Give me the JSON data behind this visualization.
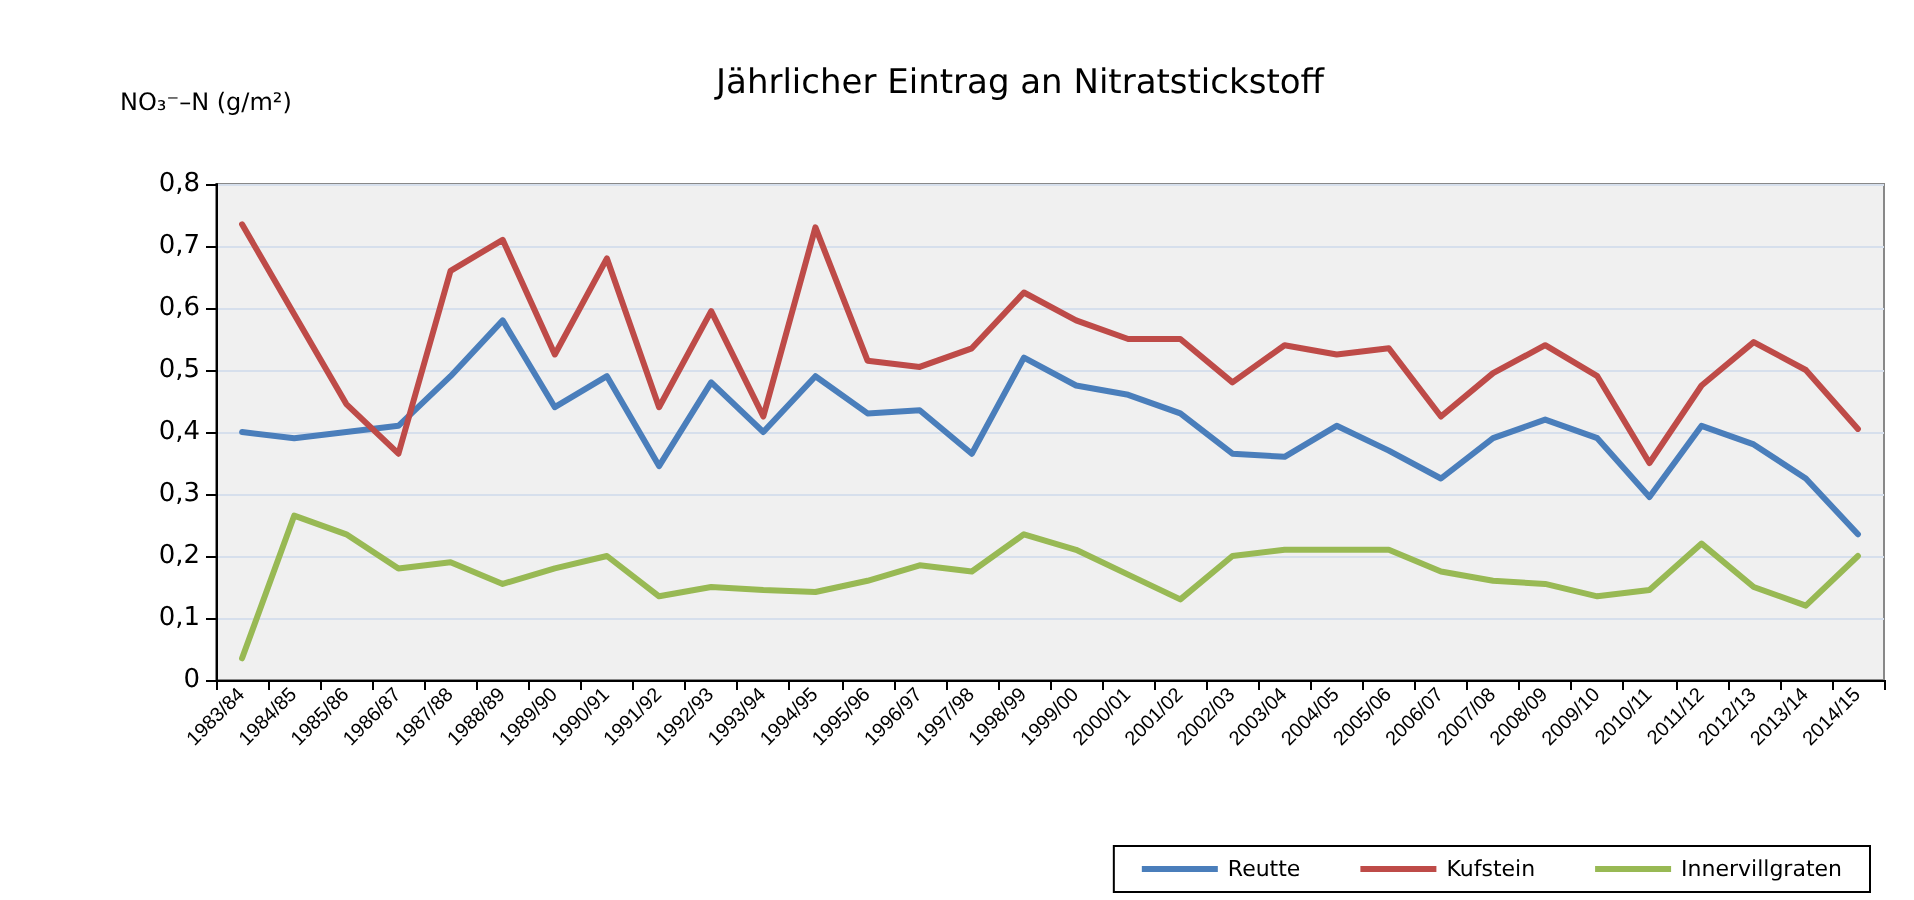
{
  "chart_data": {
    "type": "line",
    "title": "Jährlicher Eintrag an Nitratstickstoff",
    "ylabel": "NO₃⁻–N (g/m²)",
    "categories": [
      "1983/84",
      "1984/85",
      "1985/86",
      "1986/87",
      "1987/88",
      "1988/89",
      "1989/90",
      "1990/91",
      "1991/92",
      "1992/93",
      "1993/94",
      "1994/95",
      "1995/96",
      "1996/97",
      "1997/98",
      "1998/99",
      "1999/00",
      "2000/01",
      "2001/02",
      "2002/03",
      "2003/04",
      "2004/05",
      "2005/06",
      "2006/07",
      "2007/08",
      "2008/09",
      "2009/10",
      "2010/11",
      "2011/12",
      "2012/13",
      "2013/14",
      "2014/15"
    ],
    "series": [
      {
        "name": "Reutte",
        "color": "#4a7ebb",
        "values": [
          0.4,
          0.39,
          0.4,
          0.41,
          0.49,
          0.58,
          0.44,
          0.49,
          0.345,
          0.48,
          0.4,
          0.49,
          0.43,
          0.435,
          0.365,
          0.52,
          0.475,
          0.46,
          0.43,
          0.365,
          0.36,
          0.41,
          0.37,
          0.325,
          0.39,
          0.42,
          0.39,
          0.295,
          0.41,
          0.38,
          0.325,
          0.235
        ]
      },
      {
        "name": "Kufstein",
        "color": "#be4b48",
        "values": [
          0.735,
          0.59,
          0.445,
          0.365,
          0.66,
          0.71,
          0.525,
          0.68,
          0.44,
          0.595,
          0.425,
          0.73,
          0.515,
          0.505,
          0.535,
          0.625,
          0.58,
          0.55,
          0.55,
          0.48,
          0.54,
          0.525,
          0.535,
          0.425,
          0.495,
          0.54,
          0.49,
          0.35,
          0.475,
          0.545,
          0.5,
          0.405
        ]
      },
      {
        "name": "Innervillgraten",
        "color": "#98b954",
        "values": [
          0.035,
          0.265,
          0.235,
          0.18,
          0.19,
          0.155,
          0.18,
          0.2,
          0.135,
          0.15,
          0.145,
          0.142,
          0.16,
          0.185,
          0.175,
          0.235,
          0.21,
          0.17,
          0.13,
          0.2,
          0.21,
          0.21,
          0.21,
          0.175,
          0.16,
          0.155,
          0.135,
          0.145,
          0.22,
          0.15,
          0.12,
          0.2
        ]
      }
    ],
    "ylim": [
      0,
      0.8
    ],
    "yticks": [
      0,
      {
        "value": 0.1,
        "label": "0,1"
      },
      {
        "value": 0.2,
        "label": "0,2"
      },
      {
        "value": 0.3,
        "label": "0,3"
      },
      {
        "value": 0.4,
        "label": "0,4"
      },
      {
        "value": 0.5,
        "label": "0,5"
      },
      {
        "value": 0.6,
        "label": "0,6"
      },
      {
        "value": 0.7,
        "label": "0,7"
      },
      {
        "value": 0.8,
        "label": "0,8"
      }
    ],
    "grid": "y",
    "legend": "bottom right",
    "marker": "none",
    "line_style": "solid"
  }
}
